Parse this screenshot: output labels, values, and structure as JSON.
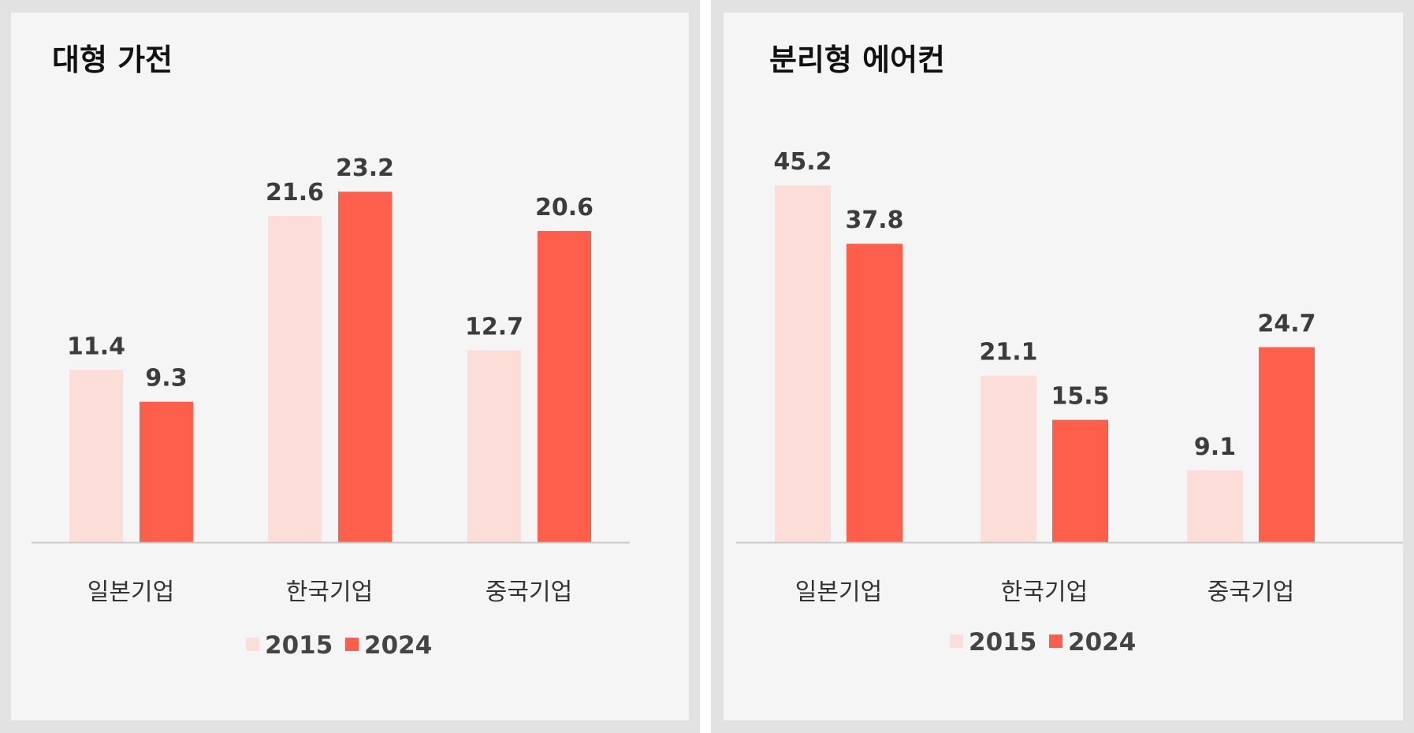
{
  "colors": {
    "series_2015": "#fcddd8",
    "series_2024": "#fe5f4c",
    "axis": "#c8c8c8"
  },
  "chart_data": [
    {
      "type": "bar",
      "title": "대형 가전",
      "categories": [
        "일본기업",
        "한국기업",
        "중국기업"
      ],
      "series": [
        {
          "name": "2015",
          "values": [
            11.4,
            21.6,
            12.7
          ]
        },
        {
          "name": "2024",
          "values": [
            9.3,
            23.2,
            20.6
          ]
        }
      ],
      "value_labels": [
        [
          "11.4",
          "21.6",
          "12.7"
        ],
        [
          "9.3",
          "23.2",
          "20.6"
        ]
      ],
      "ylim": [
        0,
        25.4
      ],
      "legend": [
        "2015",
        "2024"
      ],
      "legend_position": "bottom-center",
      "grid": false
    },
    {
      "type": "bar",
      "title": "분리형 에어컨",
      "categories": [
        "일본기업",
        "한국기업",
        "중국기업"
      ],
      "series": [
        {
          "name": "2015",
          "values": [
            45.2,
            21.1,
            9.1
          ]
        },
        {
          "name": "2024",
          "values": [
            37.8,
            15.5,
            24.7
          ]
        }
      ],
      "value_labels": [
        [
          "45.2",
          "21.1",
          "9.1"
        ],
        [
          "37.8",
          "15.5",
          "24.7"
        ]
      ],
      "ylim": [
        0,
        49.1
      ],
      "legend": [
        "2015",
        "2024"
      ],
      "legend_position": "bottom-center",
      "grid": false
    }
  ]
}
